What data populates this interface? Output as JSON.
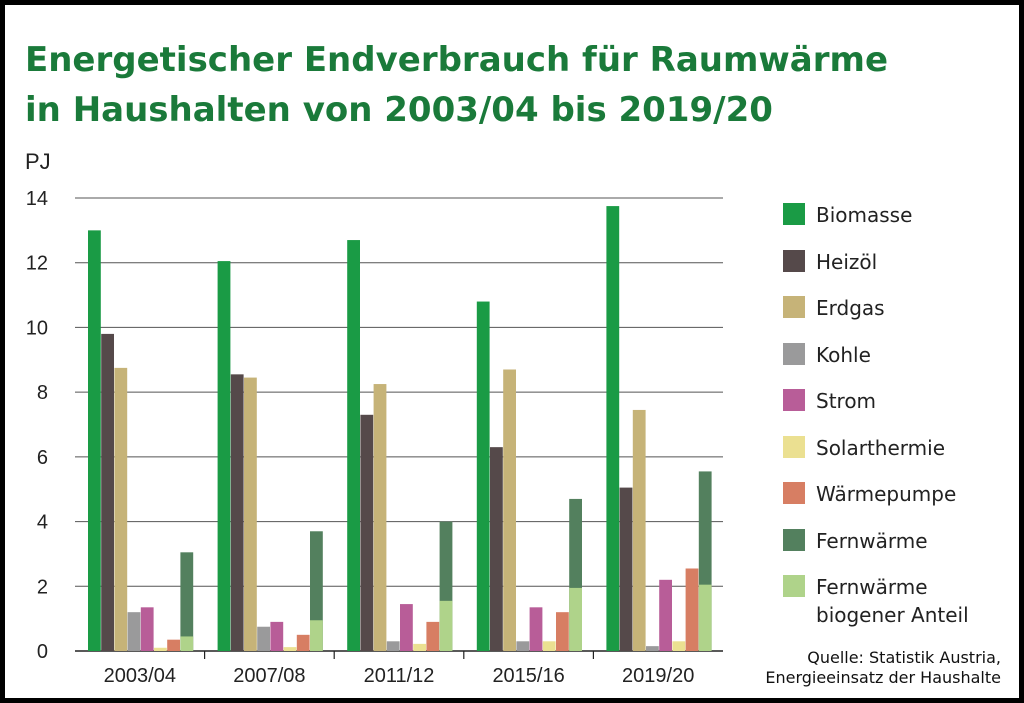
{
  "title_lines": [
    "Energetischer Endverbrauch für Raumwärme",
    "in Haushalten von 2003/04 bis 2019/20"
  ],
  "source_lines": [
    "Quelle: Statistik Austria,",
    "Energieeinsatz der Haushalte"
  ],
  "chart_data": {
    "type": "bar",
    "ylabel": "PJ",
    "ylim": [
      0,
      14
    ],
    "yticks": [
      0,
      2,
      4,
      6,
      8,
      10,
      12,
      14
    ],
    "grid": true,
    "legend_position": "right",
    "categories": [
      "2003/04",
      "2007/08",
      "2011/12",
      "2015/16",
      "2019/20"
    ],
    "series": [
      {
        "name": "Biomasse",
        "color": "#1a9b45",
        "values": [
          13.0,
          12.05,
          12.7,
          10.8,
          13.75
        ]
      },
      {
        "name": "Heizöl",
        "color": "#55494a",
        "values": [
          9.8,
          8.55,
          7.3,
          6.3,
          5.05
        ]
      },
      {
        "name": "Erdgas",
        "color": "#c6b378",
        "values": [
          8.75,
          8.45,
          8.25,
          8.7,
          7.45
        ]
      },
      {
        "name": "Kohle",
        "color": "#9a9a9b",
        "values": [
          1.2,
          0.75,
          0.3,
          0.3,
          0.15
        ]
      },
      {
        "name": "Strom",
        "color": "#b85d98",
        "values": [
          1.35,
          0.9,
          1.45,
          1.35,
          2.2
        ]
      },
      {
        "name": "Solarthermie",
        "color": "#ebe091",
        "values": [
          0.1,
          0.12,
          0.22,
          0.3,
          0.3
        ]
      },
      {
        "name": "Wärmepumpe",
        "color": "#d77e63",
        "values": [
          0.35,
          0.5,
          0.9,
          1.2,
          2.55
        ]
      },
      {
        "name": "Fernwärme",
        "color": "#53805e",
        "values": [
          3.05,
          3.7,
          4.0,
          4.7,
          5.55
        ]
      }
    ],
    "overlay": {
      "name": "Fernwärme\nbiogener Anteil",
      "color": "#afd38a",
      "on_series": "Fernwärme",
      "values": [
        0.45,
        0.95,
        1.55,
        1.95,
        2.05
      ]
    }
  }
}
